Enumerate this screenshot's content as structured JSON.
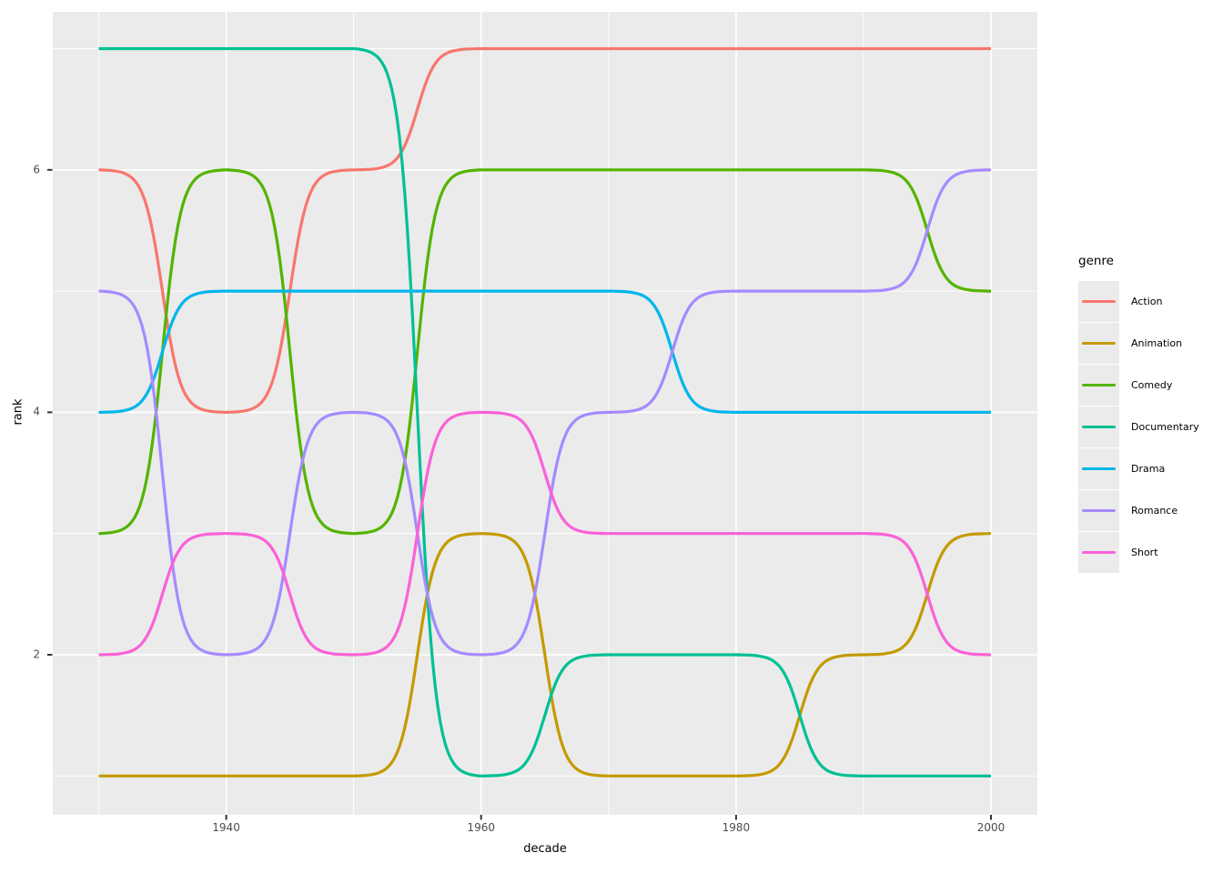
{
  "figure": {
    "background": "#FFFFFF",
    "panel_background": "#EBEBEB",
    "grid_color": "#FFFFFF",
    "axis_text_color": "#4D4D4D",
    "axis_title_color": "#000000",
    "tick_mark_color": "#333333",
    "legend_key_background": "#EBEBEB"
  },
  "chart_data": {
    "type": "line",
    "subtype": "bump",
    "title": "",
    "xlabel": "decade",
    "ylabel": "rank",
    "legend_title": "genre",
    "legend_position": "right",
    "grid": true,
    "x": [
      1930,
      1940,
      1950,
      1960,
      1970,
      1980,
      1990,
      2000
    ],
    "x_range": [
      1930,
      2000
    ],
    "y_range": [
      1,
      7
    ],
    "x_ticks": [
      1940,
      1960,
      1980,
      2000
    ],
    "x_tick_labels": [
      "1940",
      "1960",
      "1980",
      "2000"
    ],
    "x_minor_gridlines": [
      1930,
      1950,
      1970,
      1990
    ],
    "y_ticks": [
      2,
      4,
      6
    ],
    "y_tick_labels": [
      "2",
      "4",
      "6"
    ],
    "y_minor_gridlines": [
      1,
      3,
      5,
      7
    ],
    "series": [
      {
        "name": "Action",
        "color": "#F8766D",
        "values": [
          6,
          4,
          6,
          7,
          7,
          7,
          7,
          7
        ]
      },
      {
        "name": "Animation",
        "color": "#C49A00",
        "values": [
          1,
          1,
          1,
          3,
          1,
          1,
          2,
          3
        ]
      },
      {
        "name": "Comedy",
        "color": "#53B400",
        "values": [
          3,
          6,
          3,
          6,
          6,
          6,
          6,
          5
        ]
      },
      {
        "name": "Documentary",
        "color": "#00C094",
        "values": [
          7,
          7,
          7,
          1,
          2,
          2,
          1,
          1
        ]
      },
      {
        "name": "Drama",
        "color": "#00B6EB",
        "values": [
          4,
          5,
          5,
          5,
          5,
          4,
          4,
          4
        ]
      },
      {
        "name": "Romance",
        "color": "#A58AFF",
        "values": [
          5,
          2,
          4,
          2,
          4,
          5,
          5,
          6
        ]
      },
      {
        "name": "Short",
        "color": "#FB61D7",
        "values": [
          2,
          3,
          2,
          4,
          3,
          3,
          3,
          2
        ]
      }
    ]
  }
}
